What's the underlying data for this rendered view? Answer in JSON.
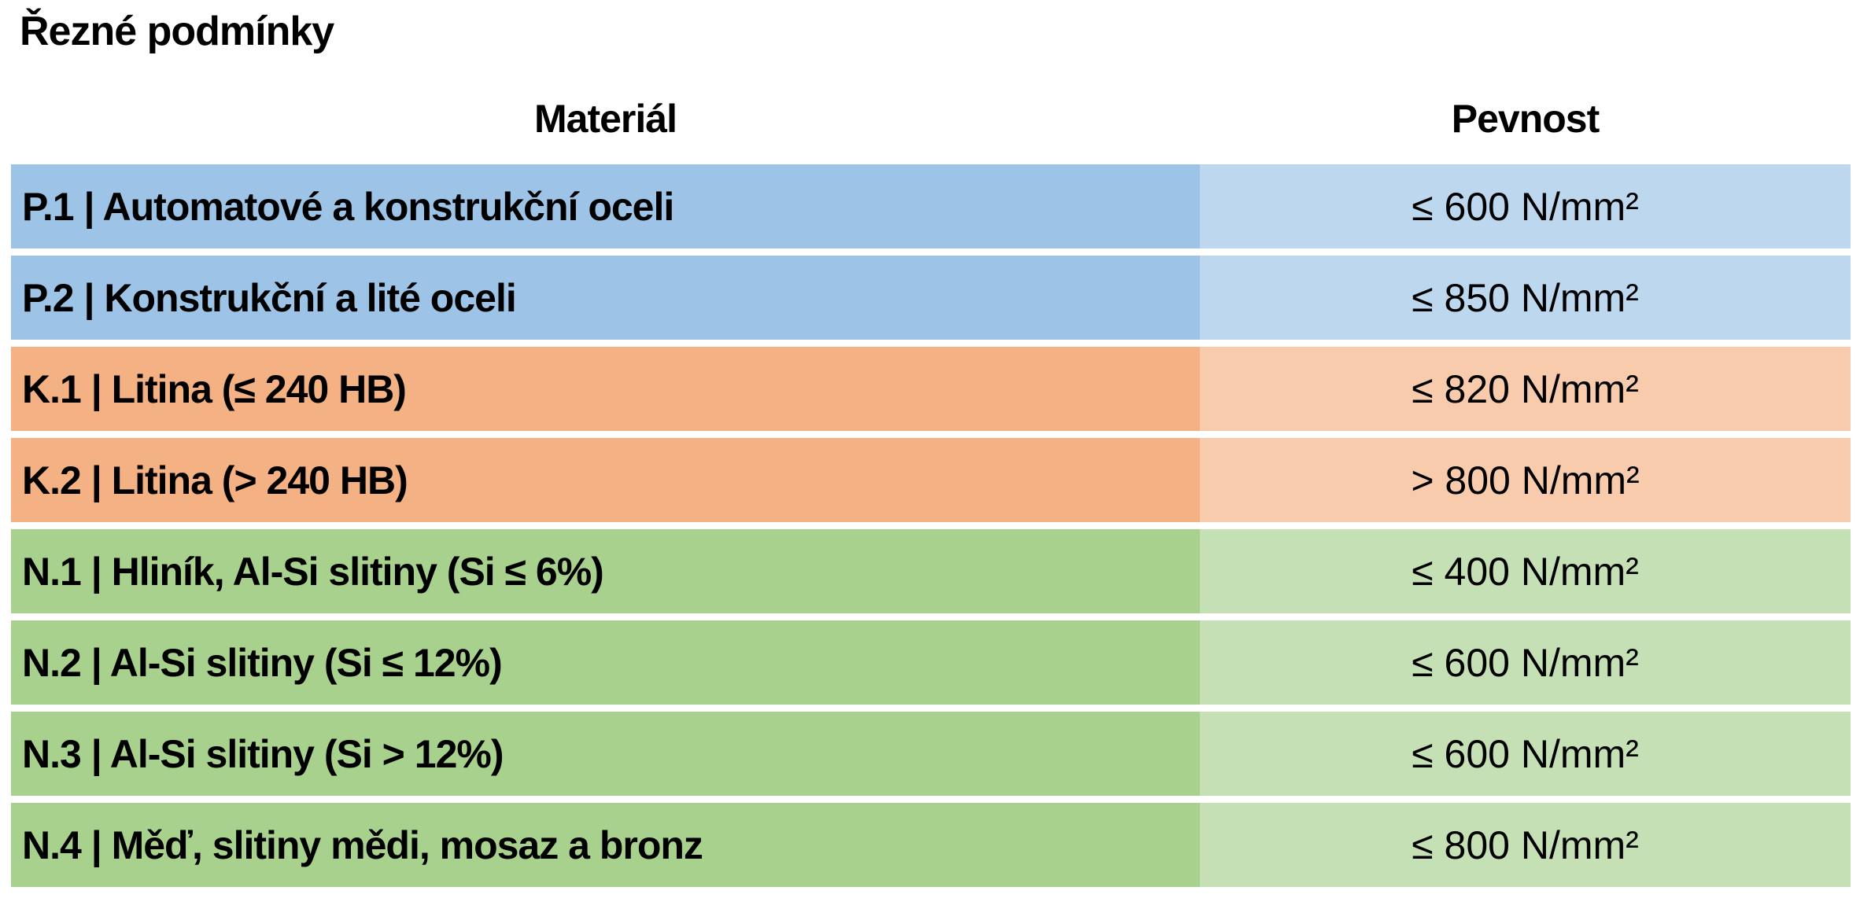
{
  "page": {
    "title": "Řezné podmínky",
    "background": "#FFFFFF"
  },
  "table": {
    "columns": [
      {
        "label": "Materiál"
      },
      {
        "label": "Pevnost"
      }
    ],
    "rows": [
      {
        "material": "P.1 | Automatové a konstrukční oceli",
        "strength": "≤ 600 N/mm²",
        "group": "blue"
      },
      {
        "material": "P.2 | Konstrukční a lité oceli",
        "strength": "≤ 850 N/mm²",
        "group": "blue"
      },
      {
        "material": "K.1 | Litina (≤ 240 HB)",
        "strength": "≤ 820 N/mm²",
        "group": "orange"
      },
      {
        "material": "K.2 | Litina (> 240 HB)",
        "strength": "> 800 N/mm²",
        "group": "orange"
      },
      {
        "material": "N.1 | Hliník, Al-Si slitiny (Si ≤ 6%)",
        "strength": "≤ 400 N/mm²",
        "group": "green"
      },
      {
        "material": "N.2 | Al-Si slitiny (Si ≤ 12%)",
        "strength": "≤ 600 N/mm²",
        "group": "green"
      },
      {
        "material": "N.3 | Al-Si slitiny (Si > 12%)",
        "strength": "≤ 600 N/mm²",
        "group": "green"
      },
      {
        "material": "N.4 | Měď, slitiny mědi, mosaz a bronz",
        "strength": "≤ 800 N/mm²",
        "group": "green"
      }
    ]
  },
  "colors": {
    "blue": {
      "dark": "#9DC3E6",
      "light": "#BDD7EE"
    },
    "orange": {
      "dark": "#F4B183",
      "light": "#F8CBAD"
    },
    "green": {
      "dark": "#A9D18E",
      "light": "#C5E0B4"
    },
    "text": "#000000"
  }
}
